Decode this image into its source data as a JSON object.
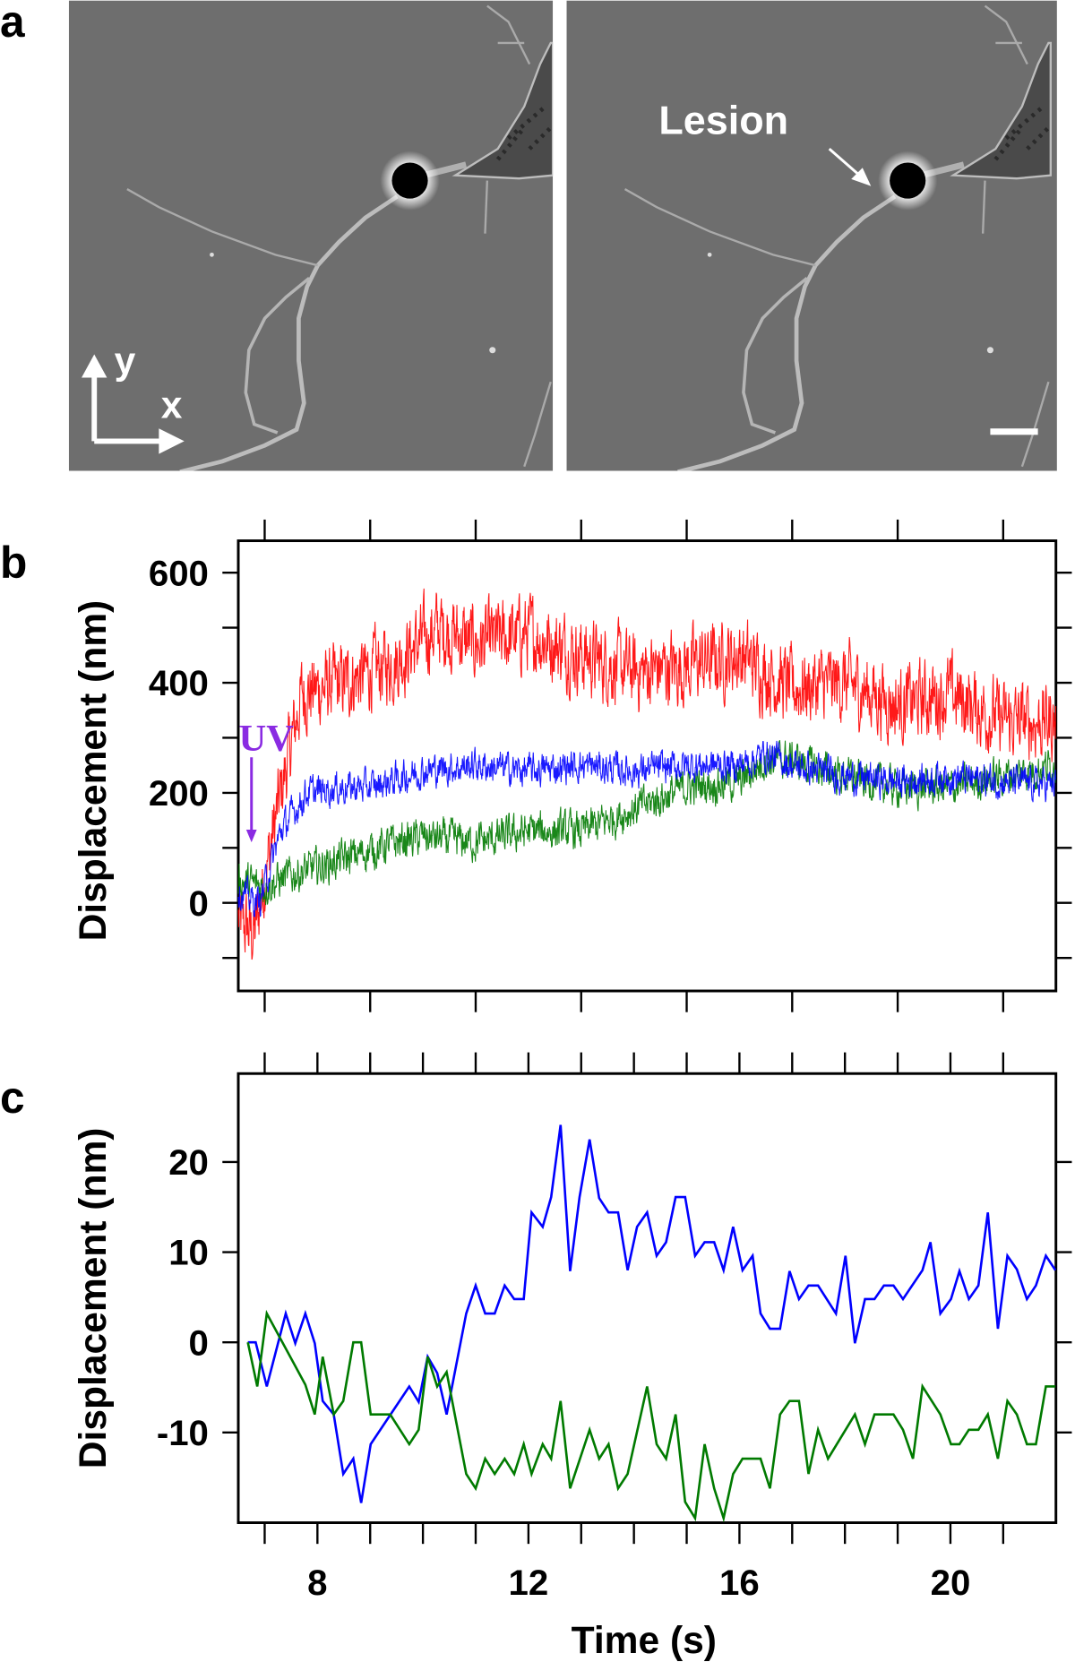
{
  "panel_labels": {
    "a": "a",
    "b": "b",
    "c": "c"
  },
  "panel_a": {
    "axis_y_label": "y",
    "axis_x_label": "x",
    "lesion_label": "Lesion"
  },
  "colors": {
    "red": "#ff0000",
    "blue": "#0000ff",
    "green": "#007a00",
    "uv": "#8a2be2",
    "cell_bg": "#6e6e6e"
  },
  "chart_data": [
    {
      "id": "b",
      "type": "line",
      "xlabel": "",
      "ylabel": "Displacement (nm)",
      "xlim": [
        6.5,
        22
      ],
      "ylim": [
        -160,
        658
      ],
      "x_ticks": [
        7,
        9,
        11,
        13,
        15,
        17,
        19,
        21
      ],
      "y_ticks": [
        -100,
        0,
        100,
        200,
        300,
        400,
        500,
        600
      ],
      "y_tick_labels": [
        "0",
        "200",
        "400",
        "600"
      ],
      "y_tick_label_values": [
        0,
        200,
        400,
        600
      ],
      "annotation": {
        "text": "UV",
        "x": 6.75,
        "y_from": 330,
        "y_to": 110
      },
      "series": [
        {
          "name": "red",
          "color": "#ff0000",
          "noise": 70,
          "mean": [
            [
              6.5,
              -30
            ],
            [
              6.8,
              -60
            ],
            [
              7.2,
              150
            ],
            [
              7.7,
              380
            ],
            [
              8.5,
              400
            ],
            [
              9.5,
              440
            ],
            [
              10.3,
              500
            ],
            [
              11,
              470
            ],
            [
              12,
              490
            ],
            [
              13,
              450
            ],
            [
              14,
              420
            ],
            [
              15,
              430
            ],
            [
              16,
              450
            ],
            [
              16.5,
              420
            ],
            [
              17,
              390
            ],
            [
              18,
              400
            ],
            [
              19,
              360
            ],
            [
              20,
              380
            ],
            [
              21,
              330
            ],
            [
              22,
              330
            ]
          ]
        },
        {
          "name": "green",
          "color": "#007a00",
          "noise": 35,
          "mean": [
            [
              6.5,
              40
            ],
            [
              7,
              30
            ],
            [
              7.5,
              50
            ],
            [
              8.5,
              80
            ],
            [
              9.5,
              110
            ],
            [
              10,
              120
            ],
            [
              11,
              110
            ],
            [
              12,
              130
            ],
            [
              13,
              130
            ],
            [
              14,
              170
            ],
            [
              15,
              210
            ],
            [
              16,
              220
            ],
            [
              16.5,
              260
            ],
            [
              17,
              260
            ],
            [
              18,
              230
            ],
            [
              19,
              210
            ],
            [
              20,
              210
            ],
            [
              21,
              230
            ],
            [
              22,
              250
            ]
          ]
        },
        {
          "name": "blue",
          "color": "#0000ff",
          "noise": 30,
          "mean": [
            [
              6.5,
              20
            ],
            [
              6.9,
              0
            ],
            [
              7.3,
              130
            ],
            [
              7.8,
              200
            ],
            [
              8.5,
              210
            ],
            [
              9,
              210
            ],
            [
              10,
              240
            ],
            [
              11,
              250
            ],
            [
              12,
              240
            ],
            [
              13,
              250
            ],
            [
              14,
              240
            ],
            [
              15,
              250
            ],
            [
              16,
              250
            ],
            [
              16.5,
              270
            ],
            [
              17,
              250
            ],
            [
              18,
              230
            ],
            [
              19,
              220
            ],
            [
              20,
              230
            ],
            [
              21,
              220
            ],
            [
              22,
              215
            ]
          ]
        }
      ]
    },
    {
      "id": "c",
      "type": "line",
      "xlabel": "Time (s)",
      "ylabel": "Displacement (nm)",
      "xlim": [
        6.5,
        22
      ],
      "ylim": [
        -20,
        29.8
      ],
      "x_ticks": [
        7,
        8,
        9,
        10,
        11,
        12,
        13,
        14,
        15,
        16,
        17,
        18,
        19,
        20,
        21
      ],
      "x_tick_labels": [
        "8",
        "12",
        "16",
        "20"
      ],
      "x_tick_label_values": [
        8,
        12,
        16,
        20
      ],
      "y_ticks": [
        -10,
        0,
        10,
        20
      ],
      "y_tick_labels": [
        "-10",
        "0",
        "10",
        "20"
      ],
      "series": [
        {
          "name": "blue",
          "color": "#0000ff",
          "points": [
            [
              6.68,
              0
            ],
            [
              6.83,
              0
            ],
            [
              7.04,
              -4.9
            ],
            [
              7.4,
              3.2
            ],
            [
              7.58,
              -0.1
            ],
            [
              7.77,
              3.2
            ],
            [
              7.95,
              -0.1
            ],
            [
              8.1,
              -6.5
            ],
            [
              8.31,
              -8.0
            ],
            [
              8.49,
              -14.6
            ],
            [
              8.68,
              -12.9
            ],
            [
              8.83,
              -17.8
            ],
            [
              9.01,
              -11.3
            ],
            [
              9.74,
              -4.9
            ],
            [
              9.92,
              -6.6
            ],
            [
              10.09,
              -1.6
            ],
            [
              10.27,
              -3.4
            ],
            [
              10.45,
              -8.0
            ],
            [
              10.82,
              3.2
            ],
            [
              11.0,
              6.3
            ],
            [
              11.18,
              3.2
            ],
            [
              11.36,
              3.2
            ],
            [
              11.55,
              6.3
            ],
            [
              11.73,
              4.8
            ],
            [
              11.91,
              4.8
            ],
            [
              12.06,
              14.4
            ],
            [
              12.27,
              12.8
            ],
            [
              12.43,
              16.1
            ],
            [
              12.61,
              24.1
            ],
            [
              12.79,
              7.9
            ],
            [
              12.97,
              16.1
            ],
            [
              13.16,
              22.5
            ],
            [
              13.34,
              16.0
            ],
            [
              13.52,
              14.4
            ],
            [
              13.7,
              14.4
            ],
            [
              13.88,
              8.0
            ],
            [
              14.06,
              12.8
            ],
            [
              14.25,
              14.4
            ],
            [
              14.43,
              9.6
            ],
            [
              14.61,
              11.1
            ],
            [
              14.79,
              16.1
            ],
            [
              14.97,
              16.1
            ],
            [
              15.16,
              9.6
            ],
            [
              15.34,
              11.1
            ],
            [
              15.52,
              11.1
            ],
            [
              15.7,
              8.0
            ],
            [
              15.88,
              12.8
            ],
            [
              16.06,
              8.0
            ],
            [
              16.25,
              9.6
            ],
            [
              16.4,
              3.2
            ],
            [
              16.58,
              1.5
            ],
            [
              16.77,
              1.5
            ],
            [
              16.95,
              7.9
            ],
            [
              17.13,
              4.8
            ],
            [
              17.31,
              6.3
            ],
            [
              17.49,
              6.3
            ],
            [
              17.83,
              3.2
            ],
            [
              18.01,
              9.6
            ],
            [
              18.19,
              -0.1
            ],
            [
              18.38,
              4.8
            ],
            [
              18.56,
              4.8
            ],
            [
              18.74,
              6.3
            ],
            [
              18.92,
              6.3
            ],
            [
              19.1,
              4.8
            ],
            [
              19.47,
              8.0
            ],
            [
              19.62,
              11.1
            ],
            [
              19.81,
              3.2
            ],
            [
              20.01,
              4.8
            ],
            [
              20.17,
              7.9
            ],
            [
              20.35,
              4.8
            ],
            [
              20.53,
              6.3
            ],
            [
              20.71,
              14.4
            ],
            [
              20.9,
              1.5
            ],
            [
              21.08,
              9.6
            ],
            [
              21.26,
              8.1
            ],
            [
              21.45,
              4.8
            ],
            [
              21.62,
              6.3
            ],
            [
              21.81,
              9.6
            ],
            [
              21.99,
              8.0
            ]
          ]
        },
        {
          "name": "green",
          "color": "#007a00",
          "points": [
            [
              6.68,
              0
            ],
            [
              6.86,
              -4.9
            ],
            [
              7.04,
              3.2
            ],
            [
              7.77,
              -4.7
            ],
            [
              7.95,
              -8.0
            ],
            [
              8.1,
              -1.6
            ],
            [
              8.31,
              -8.0
            ],
            [
              8.49,
              -6.5
            ],
            [
              8.68,
              0
            ],
            [
              8.83,
              0
            ],
            [
              9.01,
              -8.0
            ],
            [
              9.38,
              -8.0
            ],
            [
              9.74,
              -11.3
            ],
            [
              9.92,
              -9.7
            ],
            [
              10.09,
              -1.6
            ],
            [
              10.27,
              -4.9
            ],
            [
              10.45,
              -3.3
            ],
            [
              10.82,
              -14.6
            ],
            [
              11.0,
              -16.2
            ],
            [
              11.18,
              -12.9
            ],
            [
              11.36,
              -14.6
            ],
            [
              11.55,
              -12.9
            ],
            [
              11.73,
              -14.6
            ],
            [
              11.91,
              -11.3
            ],
            [
              12.06,
              -14.6
            ],
            [
              12.27,
              -11.3
            ],
            [
              12.43,
              -12.9
            ],
            [
              12.61,
              -6.5
            ],
            [
              12.79,
              -16.2
            ],
            [
              13.16,
              -9.7
            ],
            [
              13.34,
              -12.9
            ],
            [
              13.52,
              -11.3
            ],
            [
              13.7,
              -16.2
            ],
            [
              13.88,
              -14.6
            ],
            [
              14.25,
              -4.9
            ],
            [
              14.43,
              -11.3
            ],
            [
              14.61,
              -12.9
            ],
            [
              14.79,
              -8.0
            ],
            [
              14.97,
              -17.7
            ],
            [
              15.16,
              -19.5
            ],
            [
              15.34,
              -11.3
            ],
            [
              15.52,
              -16.2
            ],
            [
              15.7,
              -19.5
            ],
            [
              15.88,
              -14.6
            ],
            [
              16.06,
              -12.9
            ],
            [
              16.4,
              -12.9
            ],
            [
              16.58,
              -16.2
            ],
            [
              16.77,
              -8.0
            ],
            [
              16.95,
              -6.5
            ],
            [
              17.13,
              -6.5
            ],
            [
              17.31,
              -14.6
            ],
            [
              17.49,
              -9.7
            ],
            [
              17.68,
              -12.9
            ],
            [
              18.19,
              -8.0
            ],
            [
              18.38,
              -11.3
            ],
            [
              18.56,
              -8.0
            ],
            [
              18.92,
              -8.0
            ],
            [
              19.1,
              -9.7
            ],
            [
              19.29,
              -12.9
            ],
            [
              19.47,
              -4.9
            ],
            [
              19.81,
              -8.0
            ],
            [
              20.01,
              -11.3
            ],
            [
              20.17,
              -11.3
            ],
            [
              20.35,
              -9.7
            ],
            [
              20.53,
              -9.7
            ],
            [
              20.71,
              -8.0
            ],
            [
              20.9,
              -12.9
            ],
            [
              21.08,
              -6.5
            ],
            [
              21.26,
              -8.0
            ],
            [
              21.45,
              -11.3
            ],
            [
              21.62,
              -11.3
            ],
            [
              21.81,
              -4.9
            ],
            [
              21.99,
              -4.9
            ]
          ]
        }
      ]
    }
  ]
}
